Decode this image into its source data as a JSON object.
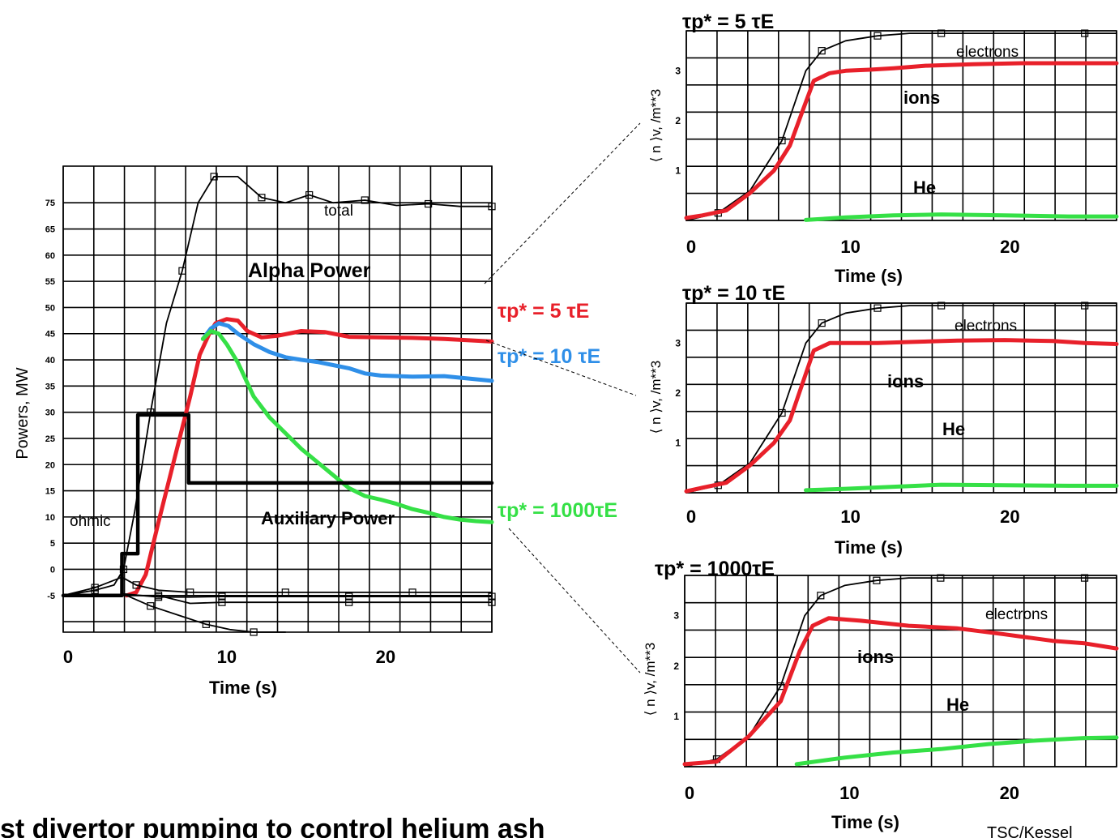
{
  "footer": {
    "caption": "st divertor pumping to control helium ash",
    "credit": "TSC/Kessel"
  },
  "chart_data": [
    {
      "type": "line",
      "ylabel": "Powers, MW",
      "xlabel": "Time (s)",
      "xlim": [
        0,
        27
      ],
      "ylim": [
        -7,
        82
      ],
      "x_ticks": [
        "0",
        "10",
        "20"
      ],
      "y_ticks": [
        "75",
        "65",
        "60",
        "55",
        "50",
        "45",
        "40",
        "35",
        "30",
        "25",
        "20",
        "15",
        "10",
        "5",
        "0",
        "-5"
      ],
      "grid": true,
      "annotations": [
        "total",
        "Alpha Power",
        "Auxiliary Power",
        "ohmic"
      ],
      "series": [
        {
          "name": "total",
          "color": "#000000",
          "x": [
            0,
            2,
            3.2,
            3.8,
            4.5,
            5.5,
            6.5,
            7.5,
            8.5,
            9.5,
            11,
            12.5,
            14,
            15.5,
            17,
            19,
            21,
            23,
            25,
            27
          ],
          "y": [
            0,
            1,
            2,
            5,
            16,
            35,
            52,
            62,
            75,
            80,
            80,
            76,
            75,
            76.5,
            75,
            75.5,
            74.5,
            74.8,
            74.3,
            74.3
          ]
        },
        {
          "name": "τp* = 5 τE",
          "color": "#e8202a",
          "x": [
            4,
            4.6,
            5.2,
            6,
            7,
            8,
            8.6,
            9.2,
            9.6,
            10.3,
            11,
            11.6,
            12.5,
            13.5,
            15,
            16.5,
            18,
            20,
            22,
            24,
            27
          ],
          "y": [
            0,
            0.6,
            4,
            14,
            26,
            38,
            46,
            50,
            52,
            52.8,
            52.5,
            50.5,
            49.3,
            49.6,
            50.5,
            50.3,
            49.4,
            49.3,
            49.2,
            49.0,
            48.5
          ]
        },
        {
          "name": "τp* = 10 τE",
          "color": "#2f8fe8",
          "x": [
            8.8,
            9.3,
            9.8,
            10.4,
            11,
            12,
            13,
            14,
            15,
            16,
            17,
            18,
            19,
            20,
            22,
            24,
            27
          ],
          "y": [
            49,
            51,
            52,
            51.5,
            50,
            48,
            46.5,
            45.5,
            45,
            44.6,
            44,
            43.4,
            42.4,
            42,
            41.8,
            41.9,
            41
          ]
        },
        {
          "name": "τp* = 1000τE",
          "color": "#35e046",
          "x": [
            8.8,
            9.3,
            9.8,
            10.3,
            11,
            12,
            13,
            14,
            15,
            16,
            17,
            18,
            19,
            20,
            21,
            22,
            23,
            24,
            25,
            26,
            27
          ],
          "y": [
            49,
            50.5,
            50,
            48,
            44.5,
            38,
            34,
            31,
            28,
            25.5,
            23,
            20.5,
            19,
            18.3,
            17.5,
            16.5,
            15.8,
            15,
            14.5,
            14.2,
            14
          ]
        },
        {
          "name": "Auxiliary Power",
          "color": "#000000",
          "x": [
            0,
            3.7,
            3.7,
            4.7,
            4.7,
            7.9,
            7.9,
            27
          ],
          "y": [
            0,
            0,
            8,
            8,
            34.5,
            34.5,
            21.5,
            21.5
          ]
        },
        {
          "name": "ohmic",
          "color": "#000000",
          "x": [
            0,
            2,
            3.7,
            4.6,
            6,
            8,
            10,
            14,
            18,
            22,
            27
          ],
          "y": [
            0,
            1.5,
            3.5,
            2,
            1,
            0.6,
            0.6,
            0.6,
            0.6,
            0.6,
            0.6
          ]
        },
        {
          "name": "",
          "color": "#000000",
          "x": [
            3.8,
            6,
            8,
            10,
            14,
            18,
            22,
            27
          ],
          "y": [
            0.3,
            -0.3,
            -0.3,
            -0.2,
            -0.2,
            -0.2,
            -0.2,
            -0.2
          ]
        },
        {
          "name": "",
          "color": "#000000",
          "x": [
            3.8,
            6,
            8,
            10,
            14,
            18,
            22,
            27
          ],
          "y": [
            0,
            0,
            -1.5,
            -1.3,
            -1.3,
            -1.3,
            -1.3,
            -1.3
          ]
        },
        {
          "name": "",
          "color": "#000000",
          "x": [
            4,
            5.5,
            7.5,
            9,
            10.5,
            12,
            14
          ],
          "y": [
            0,
            -2,
            -4,
            -5.5,
            -6.5,
            -7,
            -7
          ]
        }
      ]
    },
    {
      "type": "line",
      "title": "τp* = 5 τE",
      "ylabel": "⟨ n ⟩v, /m**3",
      "xlabel": "Time (s)",
      "xlim": [
        0,
        27
      ],
      "ylim": [
        0,
        3.8
      ],
      "x_ticks": [
        "0",
        "10",
        "20"
      ],
      "y_ticks": [
        "3",
        "2",
        "1"
      ],
      "grid": true,
      "annotations": [
        "electrons",
        "ions",
        "He"
      ],
      "series": [
        {
          "name": "electrons",
          "color": "#000000",
          "x": [
            0,
            2,
            4,
            6,
            7.5,
            8.5,
            10,
            12,
            14,
            16,
            20,
            25,
            27
          ],
          "y": [
            0,
            0.15,
            0.6,
            1.6,
            3.0,
            3.4,
            3.6,
            3.7,
            3.75,
            3.75,
            3.75,
            3.75,
            3.75
          ]
        },
        {
          "name": "ions",
          "color": "#e8202a",
          "x": [
            0,
            1,
            2.5,
            4,
            5.5,
            6.5,
            7.3,
            8,
            9,
            10,
            11.5,
            13,
            15,
            18,
            21,
            24,
            27
          ],
          "y": [
            0.05,
            0.1,
            0.2,
            0.55,
            1.0,
            1.5,
            2.2,
            2.8,
            2.95,
            3.0,
            3.02,
            3.05,
            3.1,
            3.13,
            3.15,
            3.15,
            3.15
          ]
        },
        {
          "name": "He",
          "color": "#35e046",
          "x": [
            7.5,
            10,
            13,
            16,
            20,
            24,
            27
          ],
          "y": [
            0.01,
            0.06,
            0.1,
            0.12,
            0.1,
            0.08,
            0.08
          ]
        }
      ]
    },
    {
      "type": "line",
      "title": "τp* = 10 τE",
      "ylabel": "⟨ n ⟩v, /m**3",
      "xlabel": "Time (s)",
      "xlim": [
        0,
        27
      ],
      "ylim": [
        0,
        3.8
      ],
      "x_ticks": [
        "0",
        "10",
        "20"
      ],
      "y_ticks": [
        "3",
        "2",
        "1"
      ],
      "grid": true,
      "annotations": [
        "electrons",
        "ions",
        "He"
      ],
      "series": [
        {
          "name": "electrons",
          "color": "#000000",
          "x": [
            0,
            2,
            4,
            6,
            7.5,
            8.5,
            10,
            12,
            14,
            16,
            20,
            25,
            27
          ],
          "y": [
            0,
            0.15,
            0.6,
            1.6,
            3.0,
            3.4,
            3.6,
            3.7,
            3.75,
            3.75,
            3.75,
            3.75,
            3.75
          ]
        },
        {
          "name": "ions",
          "color": "#e8202a",
          "x": [
            0,
            1,
            2.5,
            4,
            5.5,
            6.5,
            7.3,
            8,
            9,
            10,
            12,
            14,
            17,
            20,
            23,
            25,
            27
          ],
          "y": [
            0.03,
            0.1,
            0.2,
            0.55,
            1.0,
            1.45,
            2.2,
            2.85,
            3.0,
            3.0,
            3.0,
            3.02,
            3.05,
            3.06,
            3.04,
            3.0,
            2.98
          ]
        },
        {
          "name": "He",
          "color": "#35e046",
          "x": [
            7.5,
            10,
            13,
            16,
            20,
            24,
            27
          ],
          "y": [
            0.05,
            0.08,
            0.12,
            0.16,
            0.15,
            0.14,
            0.14
          ]
        }
      ]
    },
    {
      "type": "line",
      "title": "τp* = 1000τE",
      "ylabel": "⟨ n ⟩v, /m**3",
      "xlabel": "Time (s)",
      "xlim": [
        0,
        27
      ],
      "ylim": [
        0,
        3.8
      ],
      "x_ticks": [
        "0",
        "10",
        "20"
      ],
      "y_ticks": [
        "3",
        "2",
        "1"
      ],
      "grid": true,
      "annotations": [
        "electrons",
        "ions",
        "He"
      ],
      "series": [
        {
          "name": "electrons",
          "color": "#000000",
          "x": [
            0,
            2,
            4,
            6,
            7.5,
            8.5,
            10,
            12,
            14,
            16,
            20,
            25,
            27
          ],
          "y": [
            0,
            0.15,
            0.6,
            1.6,
            3.0,
            3.4,
            3.6,
            3.7,
            3.75,
            3.75,
            3.75,
            3.75,
            3.75
          ]
        },
        {
          "name": "ions",
          "color": "#e8202a",
          "x": [
            0,
            2,
            4,
            6,
            7.2,
            8,
            9,
            11,
            14,
            17,
            20,
            23,
            25,
            27
          ],
          "y": [
            0.05,
            0.1,
            0.6,
            1.3,
            2.3,
            2.8,
            2.95,
            2.9,
            2.8,
            2.75,
            2.63,
            2.5,
            2.45,
            2.35
          ]
        },
        {
          "name": "He",
          "color": "#35e046",
          "x": [
            7,
            10,
            13,
            16,
            19,
            22,
            25,
            27
          ],
          "y": [
            0.05,
            0.18,
            0.28,
            0.35,
            0.45,
            0.52,
            0.57,
            0.58
          ]
        }
      ]
    }
  ]
}
